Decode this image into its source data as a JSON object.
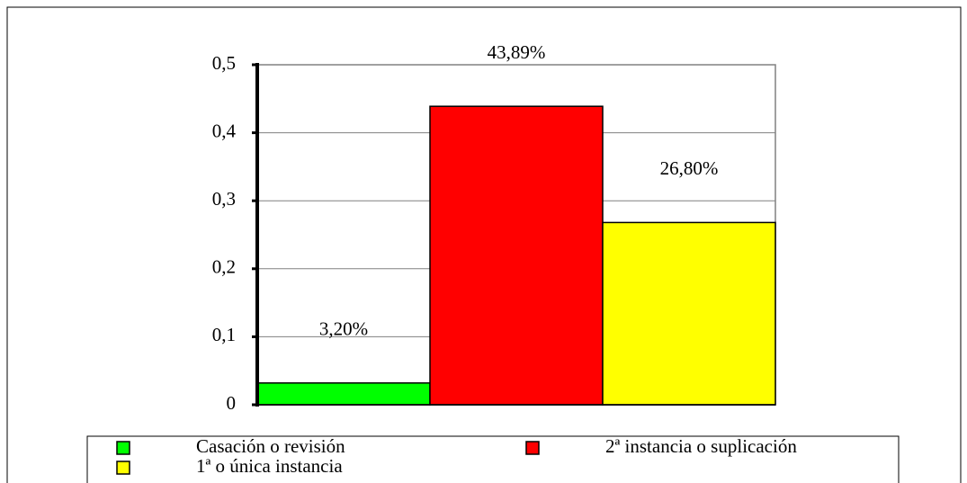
{
  "chart_data": {
    "type": "bar",
    "categories": [
      null
    ],
    "series": [
      {
        "name": "Casación o revisión",
        "color": "#00ff00",
        "values": [
          0.032
        ],
        "value_labels": [
          "3,20%"
        ]
      },
      {
        "name": "2ª instancia o suplicación",
        "color": "#ff0000",
        "values": [
          0.4389
        ],
        "value_labels": [
          "43,89%"
        ]
      },
      {
        "name": "1ª o única instancia",
        "color": "#ffff00",
        "values": [
          0.268
        ],
        "value_labels": [
          "26,80%"
        ]
      }
    ],
    "ylim": [
      0,
      0.5
    ],
    "yticks": [
      0,
      {
        "value": 0.1,
        "label": "0,1"
      },
      {
        "value": 0.2,
        "label": "0,2"
      },
      {
        "value": 0.3,
        "label": "0,3"
      },
      {
        "value": 0.4,
        "label": "0,4"
      },
      {
        "value": 0.5,
        "label": "0,5"
      }
    ],
    "grid": true,
    "legend": "bottom"
  }
}
